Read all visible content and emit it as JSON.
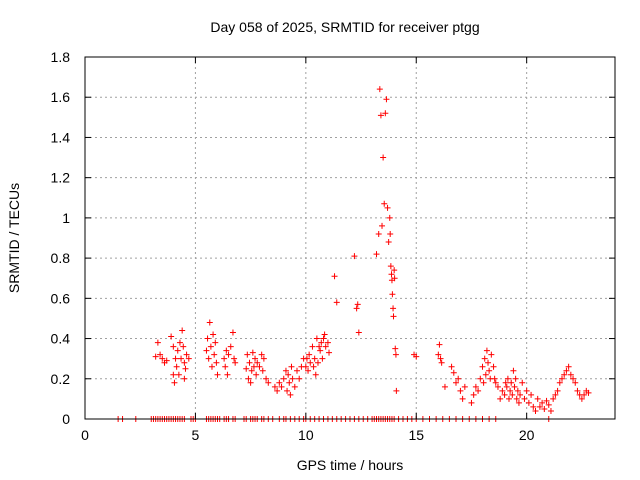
{
  "chart_data": {
    "type": "scatter",
    "title": "Day 058 of 2025, SRMTID for receiver ptgg",
    "xlabel": "GPS time / hours",
    "ylabel": "SRMTID / TECUs",
    "xlim": [
      0,
      24
    ],
    "ylim": [
      0,
      1.8
    ],
    "xticks": [
      0,
      5,
      10,
      15,
      20
    ],
    "xtick_labels": [
      "0",
      "5",
      "10",
      "15",
      "20"
    ],
    "yticks": [
      0,
      0.2,
      0.4,
      0.6,
      0.8,
      1.0,
      1.2,
      1.4,
      1.6,
      1.8
    ],
    "ytick_labels": [
      "0",
      "0.2",
      "0.4",
      "0.6",
      "0.8",
      "1",
      "1.2",
      "1.4",
      "1.6",
      "1.8"
    ],
    "grid": true,
    "marker": "+",
    "marker_color": "#ff0000",
    "series": [
      {
        "name": "SRMTID",
        "points": [
          [
            1.5,
            0
          ],
          [
            1.7,
            0
          ],
          [
            2.3,
            0
          ],
          [
            3.0,
            0
          ],
          [
            3.1,
            0
          ],
          [
            3.2,
            0
          ],
          [
            3.3,
            0
          ],
          [
            3.4,
            0
          ],
          [
            3.5,
            0
          ],
          [
            3.6,
            0
          ],
          [
            3.7,
            0
          ],
          [
            3.8,
            0
          ],
          [
            3.9,
            0
          ],
          [
            4.0,
            0
          ],
          [
            4.1,
            0
          ],
          [
            4.2,
            0
          ],
          [
            4.3,
            0
          ],
          [
            4.4,
            0
          ],
          [
            4.5,
            0
          ],
          [
            4.8,
            0
          ],
          [
            4.9,
            0
          ],
          [
            5.0,
            0
          ],
          [
            5.5,
            0
          ],
          [
            5.6,
            0
          ],
          [
            5.7,
            0
          ],
          [
            5.8,
            0
          ],
          [
            5.9,
            0
          ],
          [
            6.0,
            0
          ],
          [
            6.1,
            0
          ],
          [
            6.3,
            0
          ],
          [
            6.4,
            0
          ],
          [
            6.5,
            0
          ],
          [
            6.7,
            0
          ],
          [
            6.8,
            0
          ],
          [
            7.2,
            0
          ],
          [
            7.3,
            0
          ],
          [
            7.5,
            0
          ],
          [
            7.6,
            0
          ],
          [
            7.7,
            0
          ],
          [
            7.8,
            0
          ],
          [
            8.0,
            0
          ],
          [
            8.1,
            0
          ],
          [
            8.3,
            0
          ],
          [
            8.5,
            0
          ],
          [
            8.8,
            0
          ],
          [
            9.0,
            0
          ],
          [
            9.1,
            0
          ],
          [
            9.3,
            0
          ],
          [
            9.5,
            0
          ],
          [
            9.7,
            0
          ],
          [
            9.9,
            0
          ],
          [
            10.0,
            0
          ],
          [
            10.2,
            0
          ],
          [
            10.4,
            0
          ],
          [
            10.6,
            0
          ],
          [
            10.8,
            0
          ],
          [
            11.0,
            0
          ],
          [
            11.2,
            0
          ],
          [
            11.4,
            0
          ],
          [
            11.6,
            0
          ],
          [
            11.8,
            0
          ],
          [
            12.0,
            0
          ],
          [
            12.2,
            0
          ],
          [
            12.4,
            0
          ],
          [
            12.6,
            0
          ],
          [
            12.8,
            0
          ],
          [
            13.0,
            0
          ],
          [
            13.1,
            0
          ],
          [
            13.2,
            0
          ],
          [
            13.3,
            0
          ],
          [
            13.4,
            0
          ],
          [
            13.5,
            0
          ],
          [
            13.6,
            0
          ],
          [
            13.7,
            0
          ],
          [
            13.8,
            0
          ],
          [
            13.9,
            0
          ],
          [
            14.0,
            0
          ],
          [
            14.2,
            0
          ],
          [
            14.4,
            0
          ],
          [
            14.6,
            0
          ],
          [
            14.8,
            0
          ],
          [
            15.0,
            0
          ],
          [
            15.3,
            0
          ],
          [
            15.6,
            0
          ],
          [
            15.9,
            0
          ],
          [
            16.2,
            0
          ],
          [
            16.5,
            0
          ],
          [
            16.8,
            0
          ],
          [
            17.1,
            0
          ],
          [
            17.4,
            0
          ],
          [
            17.7,
            0
          ],
          [
            18.0,
            0
          ],
          [
            18.3,
            0
          ],
          [
            18.6,
            0
          ],
          [
            21.0,
            0
          ],
          [
            3.2,
            0.31
          ],
          [
            3.3,
            0.38
          ],
          [
            3.4,
            0.32
          ],
          [
            3.5,
            0.3
          ],
          [
            3.6,
            0.28
          ],
          [
            3.7,
            0.29
          ],
          [
            3.9,
            0.41
          ],
          [
            4.0,
            0.36
          ],
          [
            4.0,
            0.22
          ],
          [
            4.05,
            0.18
          ],
          [
            4.1,
            0.3
          ],
          [
            4.15,
            0.26
          ],
          [
            4.2,
            0.34
          ],
          [
            4.25,
            0.22
          ],
          [
            4.3,
            0.38
          ],
          [
            4.35,
            0.3
          ],
          [
            4.4,
            0.44
          ],
          [
            4.45,
            0.36
          ],
          [
            4.5,
            0.28
          ],
          [
            4.5,
            0.2
          ],
          [
            4.55,
            0.25
          ],
          [
            4.6,
            0.32
          ],
          [
            4.7,
            0.3
          ],
          [
            5.5,
            0.34
          ],
          [
            5.55,
            0.4
          ],
          [
            5.6,
            0.3
          ],
          [
            5.65,
            0.48
          ],
          [
            5.7,
            0.36
          ],
          [
            5.75,
            0.26
          ],
          [
            5.8,
            0.42
          ],
          [
            5.85,
            0.32
          ],
          [
            5.9,
            0.38
          ],
          [
            5.95,
            0.28
          ],
          [
            6.0,
            0.22
          ],
          [
            6.3,
            0.3
          ],
          [
            6.35,
            0.26
          ],
          [
            6.4,
            0.34
          ],
          [
            6.45,
            0.22
          ],
          [
            6.5,
            0.32
          ],
          [
            6.6,
            0.36
          ],
          [
            6.7,
            0.43
          ],
          [
            6.75,
            0.3
          ],
          [
            6.8,
            0.28
          ],
          [
            7.3,
            0.25
          ],
          [
            7.35,
            0.32
          ],
          [
            7.4,
            0.2
          ],
          [
            7.45,
            0.28
          ],
          [
            7.5,
            0.18
          ],
          [
            7.55,
            0.24
          ],
          [
            7.6,
            0.33
          ],
          [
            7.65,
            0.26
          ],
          [
            7.7,
            0.3
          ],
          [
            7.75,
            0.22
          ],
          [
            7.8,
            0.28
          ],
          [
            7.9,
            0.26
          ],
          [
            8.0,
            0.32
          ],
          [
            8.05,
            0.24
          ],
          [
            8.1,
            0.3
          ],
          [
            8.2,
            0.2
          ],
          [
            8.3,
            0.18
          ],
          [
            8.6,
            0.16
          ],
          [
            8.7,
            0.14
          ],
          [
            8.8,
            0.18
          ],
          [
            8.9,
            0.16
          ],
          [
            9.0,
            0.2
          ],
          [
            9.1,
            0.24
          ],
          [
            9.15,
            0.14
          ],
          [
            9.2,
            0.22
          ],
          [
            9.25,
            0.18
          ],
          [
            9.3,
            0.12
          ],
          [
            9.35,
            0.26
          ],
          [
            9.4,
            0.2
          ],
          [
            9.5,
            0.16
          ],
          [
            9.6,
            0.24
          ],
          [
            9.7,
            0.2
          ],
          [
            9.8,
            0.26
          ],
          [
            9.9,
            0.3
          ],
          [
            10.0,
            0.26
          ],
          [
            10.05,
            0.3
          ],
          [
            10.1,
            0.24
          ],
          [
            10.15,
            0.32
          ],
          [
            10.2,
            0.28
          ],
          [
            10.3,
            0.36
          ],
          [
            10.35,
            0.26
          ],
          [
            10.4,
            0.3
          ],
          [
            10.45,
            0.22
          ],
          [
            10.5,
            0.4
          ],
          [
            10.55,
            0.28
          ],
          [
            10.6,
            0.36
          ],
          [
            10.65,
            0.34
          ],
          [
            10.7,
            0.38
          ],
          [
            10.75,
            0.3
          ],
          [
            10.8,
            0.4
          ],
          [
            10.85,
            0.42
          ],
          [
            10.9,
            0.36
          ],
          [
            11.0,
            0.38
          ],
          [
            11.05,
            0.33
          ],
          [
            11.3,
            0.71
          ],
          [
            11.4,
            0.58
          ],
          [
            12.2,
            0.81
          ],
          [
            12.3,
            0.55
          ],
          [
            12.35,
            0.57
          ],
          [
            12.4,
            0.43
          ],
          [
            13.2,
            0.82
          ],
          [
            13.3,
            0.92
          ],
          [
            13.35,
            1.64
          ],
          [
            13.4,
            1.51
          ],
          [
            13.45,
            0.96
          ],
          [
            13.5,
            1.3
          ],
          [
            13.55,
            1.07
          ],
          [
            13.6,
            1.52
          ],
          [
            13.65,
            1.59
          ],
          [
            13.7,
            1.05
          ],
          [
            13.75,
            0.88
          ],
          [
            13.8,
            1.0
          ],
          [
            13.82,
            0.92
          ],
          [
            13.85,
            0.76
          ],
          [
            13.88,
            0.72
          ],
          [
            13.9,
            0.69
          ],
          [
            13.92,
            0.62
          ],
          [
            13.95,
            0.55
          ],
          [
            13.97,
            0.51
          ],
          [
            14.0,
            0.74
          ],
          [
            14.02,
            0.7
          ],
          [
            14.05,
            0.35
          ],
          [
            14.08,
            0.32
          ],
          [
            14.1,
            0.14
          ],
          [
            14.9,
            0.32
          ],
          [
            15.0,
            0.31
          ],
          [
            16.0,
            0.32
          ],
          [
            16.05,
            0.37
          ],
          [
            16.1,
            0.3
          ],
          [
            16.15,
            0.28
          ],
          [
            16.3,
            0.16
          ],
          [
            16.6,
            0.26
          ],
          [
            16.7,
            0.23
          ],
          [
            16.8,
            0.18
          ],
          [
            16.9,
            0.2
          ],
          [
            17.0,
            0.14
          ],
          [
            17.1,
            0.1
          ],
          [
            17.2,
            0.16
          ],
          [
            17.5,
            0.08
          ],
          [
            17.6,
            0.12
          ],
          [
            17.7,
            0.16
          ],
          [
            17.8,
            0.14
          ],
          [
            17.9,
            0.2
          ],
          [
            18.0,
            0.26
          ],
          [
            18.05,
            0.18
          ],
          [
            18.1,
            0.3
          ],
          [
            18.15,
            0.22
          ],
          [
            18.2,
            0.34
          ],
          [
            18.25,
            0.28
          ],
          [
            18.3,
            0.24
          ],
          [
            18.35,
            0.2
          ],
          [
            18.4,
            0.32
          ],
          [
            18.5,
            0.26
          ],
          [
            18.55,
            0.2
          ],
          [
            18.6,
            0.18
          ],
          [
            18.7,
            0.16
          ],
          [
            18.8,
            0.1
          ],
          [
            18.9,
            0.14
          ],
          [
            19.0,
            0.12
          ],
          [
            19.05,
            0.18
          ],
          [
            19.1,
            0.16
          ],
          [
            19.15,
            0.2
          ],
          [
            19.2,
            0.1
          ],
          [
            19.25,
            0.14
          ],
          [
            19.3,
            0.18
          ],
          [
            19.35,
            0.12
          ],
          [
            19.4,
            0.24
          ],
          [
            19.45,
            0.16
          ],
          [
            19.5,
            0.2
          ],
          [
            19.55,
            0.1
          ],
          [
            19.6,
            0.14
          ],
          [
            19.65,
            0.08
          ],
          [
            19.7,
            0.12
          ],
          [
            19.8,
            0.18
          ],
          [
            19.9,
            0.1
          ],
          [
            20.0,
            0.14
          ],
          [
            20.1,
            0.08
          ],
          [
            20.2,
            0.12
          ],
          [
            20.3,
            0.06
          ],
          [
            20.4,
            0.04
          ],
          [
            20.5,
            0.1
          ],
          [
            20.6,
            0.06
          ],
          [
            20.7,
            0.08
          ],
          [
            20.8,
            0.05
          ],
          [
            20.9,
            0.09
          ],
          [
            21.0,
            0.07
          ],
          [
            21.1,
            0.04
          ],
          [
            21.2,
            0.1
          ],
          [
            21.3,
            0.12
          ],
          [
            21.4,
            0.14
          ],
          [
            21.5,
            0.18
          ],
          [
            21.6,
            0.2
          ],
          [
            21.7,
            0.22
          ],
          [
            21.8,
            0.24
          ],
          [
            21.9,
            0.26
          ],
          [
            22.0,
            0.22
          ],
          [
            22.1,
            0.2
          ],
          [
            22.2,
            0.18
          ],
          [
            22.3,
            0.14
          ],
          [
            22.4,
            0.12
          ],
          [
            22.5,
            0.1
          ],
          [
            22.6,
            0.12
          ],
          [
            22.7,
            0.14
          ],
          [
            22.8,
            0.13
          ]
        ]
      }
    ]
  }
}
